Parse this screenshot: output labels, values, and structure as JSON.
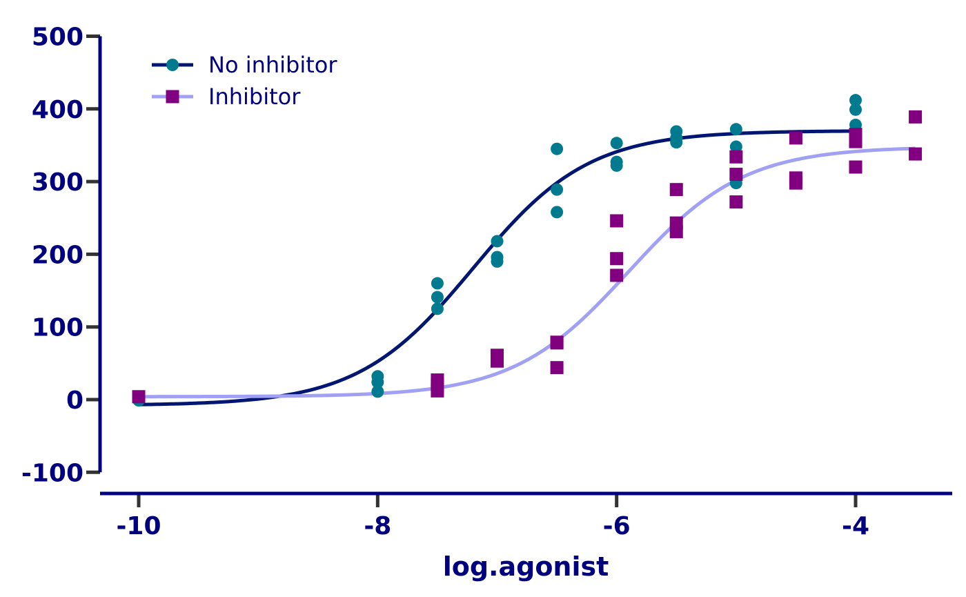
{
  "chart_data": {
    "type": "scatter",
    "title": "",
    "xlabel": "log.agonist",
    "ylabel": "",
    "xlim": [
      -10.16,
      -3.34
    ],
    "ylim": [
      -100,
      500
    ],
    "xticks": [
      -10,
      -8,
      -6,
      -4
    ],
    "xtick_labels": [
      "-10",
      "-8",
      "-6",
      "-4"
    ],
    "yticks": [
      -100,
      0,
      100,
      200,
      300,
      400,
      500
    ],
    "ytick_labels": [
      "-100",
      "0",
      "100",
      "200",
      "300",
      "400",
      "500"
    ],
    "grid": false,
    "legend_position": "top-left",
    "series": [
      {
        "name": "No inhibitor",
        "marker": "circle",
        "color": "#007a8f",
        "line_color": "#001670",
        "points": [
          [
            -10,
            -1
          ],
          [
            -8,
            32
          ],
          [
            -8,
            24
          ],
          [
            -8,
            11
          ],
          [
            -7.5,
            160
          ],
          [
            -7.5,
            141
          ],
          [
            -7.5,
            125
          ],
          [
            -7,
            218
          ],
          [
            -7,
            196
          ],
          [
            -7,
            190
          ],
          [
            -6.5,
            345
          ],
          [
            -6.5,
            289
          ],
          [
            -6.5,
            258
          ],
          [
            -6,
            353
          ],
          [
            -6,
            327
          ],
          [
            -6,
            322
          ],
          [
            -5.5,
            369
          ],
          [
            -5.5,
            360
          ],
          [
            -5.5,
            354
          ],
          [
            -5,
            372
          ],
          [
            -5,
            348
          ],
          [
            -5,
            298
          ],
          [
            -4,
            412
          ],
          [
            -4,
            399
          ],
          [
            -4,
            378
          ]
        ],
        "fit": {
          "bottom": -8,
          "top": 370,
          "log_ec50": -7.2,
          "hill_slope": 0.9
        }
      },
      {
        "name": "Inhibitor",
        "marker": "square",
        "color": "#800080",
        "line_color": "#a0a0f5",
        "points": [
          [
            -10,
            4
          ],
          [
            -7.5,
            27
          ],
          [
            -7.5,
            20
          ],
          [
            -7.5,
            12
          ],
          [
            -7,
            61
          ],
          [
            -7,
            56
          ],
          [
            -7,
            53
          ],
          [
            -6.5,
            79
          ],
          [
            -6.5,
            78
          ],
          [
            -6.5,
            44
          ],
          [
            -6,
            246
          ],
          [
            -6,
            194
          ],
          [
            -6,
            171
          ],
          [
            -5.5,
            289
          ],
          [
            -5.5,
            243
          ],
          [
            -5.5,
            231
          ],
          [
            -5,
            334
          ],
          [
            -5,
            310
          ],
          [
            -5,
            272
          ],
          [
            -4.5,
            360
          ],
          [
            -4.5,
            305
          ],
          [
            -4.5,
            298
          ],
          [
            -4,
            365
          ],
          [
            -4,
            355
          ],
          [
            -4,
            320
          ],
          [
            -3.5,
            389
          ],
          [
            -3.5,
            338
          ]
        ],
        "fit": {
          "bottom": 4,
          "top": 348,
          "log_ec50": -5.9,
          "hill_slope": 0.9
        }
      }
    ],
    "colors": {
      "axis": "#00007f",
      "tick": "#333333",
      "text": "#00007f"
    }
  }
}
